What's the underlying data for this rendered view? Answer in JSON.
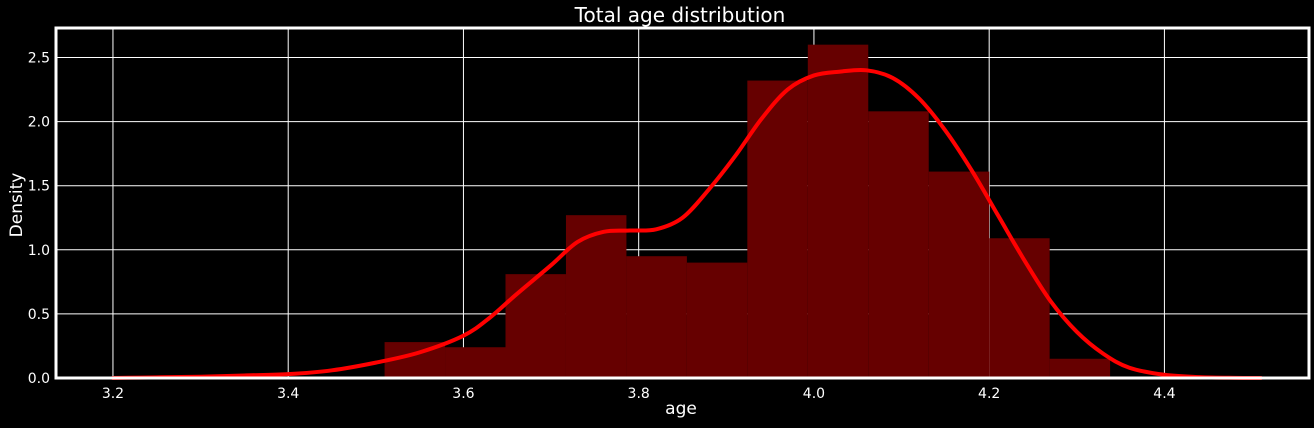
{
  "chart_data": {
    "type": "bar",
    "title": "Total age distribution",
    "xlabel": "age",
    "ylabel": "Density",
    "xlim": [
      3.135,
      4.565
    ],
    "ylim": [
      0,
      2.73
    ],
    "xticks": [
      3.2,
      3.4,
      3.6,
      3.8,
      4.0,
      4.2,
      4.4
    ],
    "xtick_labels": [
      "3.2",
      "3.4",
      "3.6",
      "3.8",
      "4.0",
      "4.2",
      "4.4"
    ],
    "yticks": [
      0.0,
      0.5,
      1.0,
      1.5,
      2.0,
      2.5
    ],
    "ytick_labels": [
      "0.0",
      "0.5",
      "1.0",
      "1.5",
      "2.0",
      "2.5"
    ],
    "grid": true,
    "background": "#000000",
    "text_color": "#ffffff",
    "bar_color": "#660000",
    "line_color": "#ff0000",
    "histogram": {
      "bin_edges": [
        3.51,
        3.579,
        3.648,
        3.717,
        3.786,
        3.855,
        3.924,
        3.993,
        4.062,
        4.131,
        4.2,
        4.269,
        4.338
      ],
      "values": [
        0.28,
        0.24,
        0.81,
        1.27,
        0.95,
        0.9,
        2.32,
        2.6,
        2.08,
        1.61,
        1.09,
        0.15
      ]
    },
    "kde": {
      "x": [
        3.2,
        3.25,
        3.3,
        3.35,
        3.4,
        3.45,
        3.5,
        3.55,
        3.6,
        3.63,
        3.66,
        3.7,
        3.73,
        3.76,
        3.79,
        3.82,
        3.85,
        3.88,
        3.91,
        3.94,
        3.97,
        4.0,
        4.03,
        4.06,
        4.09,
        4.12,
        4.15,
        4.18,
        4.21,
        4.24,
        4.27,
        4.3,
        4.33,
        4.36,
        4.4,
        4.44,
        4.48,
        4.51
      ],
      "y": [
        0.0,
        0.005,
        0.01,
        0.02,
        0.03,
        0.06,
        0.12,
        0.2,
        0.33,
        0.47,
        0.65,
        0.88,
        1.06,
        1.14,
        1.15,
        1.16,
        1.25,
        1.47,
        1.73,
        2.02,
        2.25,
        2.36,
        2.39,
        2.4,
        2.34,
        2.18,
        1.93,
        1.62,
        1.27,
        0.92,
        0.6,
        0.36,
        0.19,
        0.08,
        0.025,
        0.007,
        0.001,
        0.0
      ]
    }
  }
}
